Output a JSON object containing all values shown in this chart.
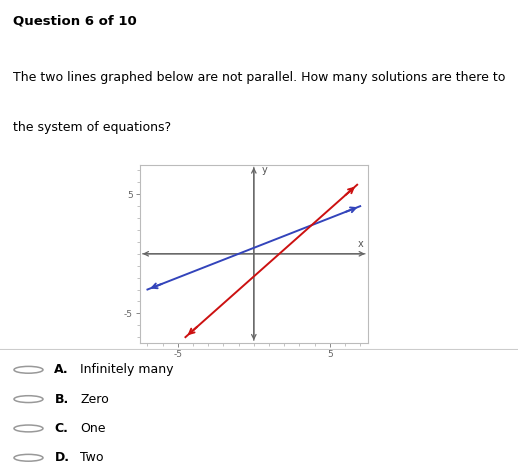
{
  "question_text": "Question 6 of 10",
  "description_line1": "The two lines graphed below are not parallel. How many solutions are there to",
  "description_line2": "the system of equations?",
  "choices": [
    {
      "label": "A.",
      "text": "Infinitely many"
    },
    {
      "label": "B.",
      "text": "Zero"
    },
    {
      "label": "C.",
      "text": "One"
    },
    {
      "label": "D.",
      "text": "Two"
    }
  ],
  "graph": {
    "xlim": [
      -7.5,
      7.5
    ],
    "ylim": [
      -7.5,
      7.5
    ],
    "xtick_labels": [
      "-5",
      "5"
    ],
    "xtick_vals": [
      -5,
      5
    ],
    "ytick_labels": [
      "5",
      "-5"
    ],
    "ytick_vals": [
      5,
      -5
    ],
    "axis_label_x": "x",
    "axis_label_y": "y",
    "blue_line_x": [
      -7.0,
      7.0
    ],
    "blue_line_y": [
      -3.0,
      4.0
    ],
    "blue_color": "#3344bb",
    "red_line_x": [
      -4.5,
      6.8
    ],
    "red_line_y": [
      -7.0,
      5.8
    ],
    "red_color": "#cc1111",
    "plot_bg": "#ffffff",
    "border_color": "#bbbbbb"
  }
}
